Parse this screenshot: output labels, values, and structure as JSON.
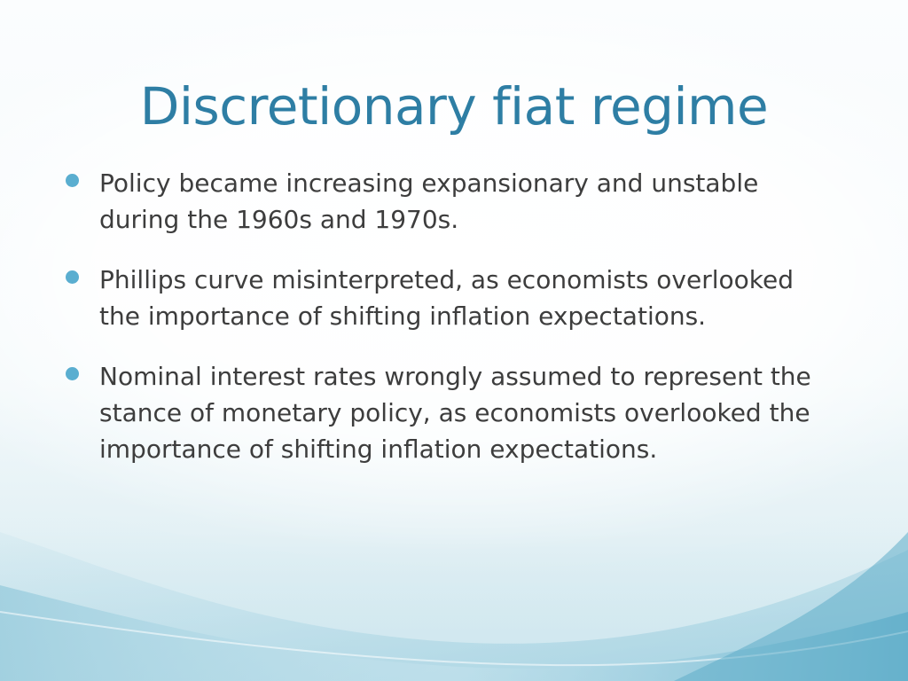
{
  "slide": {
    "title": "Discretionary fiat regime",
    "bullets": [
      {
        "text": "Policy became increasing expansionary and unstable during the 1960s and 1970s."
      },
      {
        "text": "Phillips curve misinterpreted, as economists overlooked the importance of shifting inflation expectations."
      },
      {
        "text": "Nominal interest rates wrongly assumed to represent the stance of monetary policy, as economists overlooked the importance of shifting inflation expectations."
      }
    ]
  },
  "colors": {
    "title": "#2e7ea4",
    "body_text": "#3d3d3d",
    "bullet_dot": "#5aaed0",
    "wave_light": "#cfe7ef",
    "wave_mid": "#9fcfdf",
    "wave_dark": "#6db5cf"
  }
}
